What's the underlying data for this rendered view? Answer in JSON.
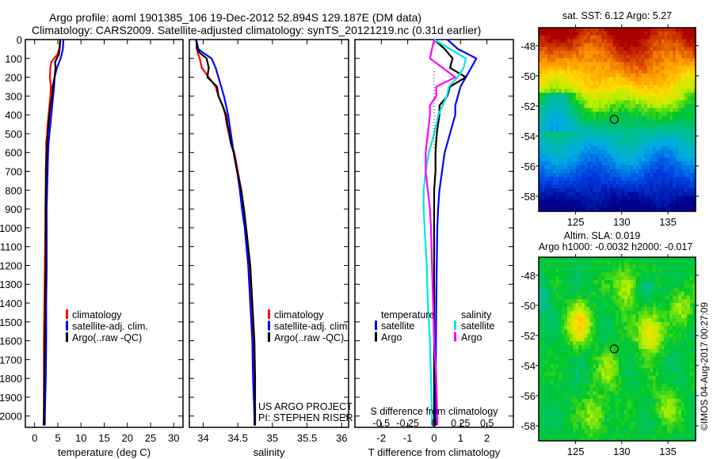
{
  "header": {
    "title_line1": "Argo profile: aoml 1901385_106 19-Dec-2012 52.894S 129.187E (DM data)",
    "title_line2": "Climatology: CARS2009. Satellite-adjusted climatology: synTS_20121219.nc (0.31d earlier)"
  },
  "colors": {
    "climatology": "#ff0000",
    "satellite": "#0000ff",
    "argo": "#000000",
    "salinity_satellite": "#00e5e5",
    "salinity_argo": "#ff00ff"
  },
  "chart_data": [
    {
      "type": "line",
      "id": "temperature",
      "xlabel": "temperature (deg C)",
      "ylabel": "",
      "xlim": [
        -2,
        32
      ],
      "ylim": [
        2060,
        0
      ],
      "xticks": [
        "0",
        "5",
        "10",
        "15",
        "20",
        "25",
        "30"
      ],
      "xtick_values": [
        0,
        5,
        10,
        15,
        20,
        25,
        30
      ],
      "yticks": [
        "0",
        "100",
        "200",
        "300",
        "400",
        "500",
        "600",
        "700",
        "800",
        "900",
        "1000",
        "1100",
        "1200",
        "1300",
        "1400",
        "1500",
        "1600",
        "1700",
        "1800",
        "1900",
        "2000"
      ],
      "ytick_values": [
        0,
        100,
        200,
        300,
        400,
        500,
        600,
        700,
        800,
        900,
        1000,
        1100,
        1200,
        1300,
        1400,
        1500,
        1600,
        1700,
        1800,
        1900,
        2000
      ],
      "legend": [
        "climatology",
        "satellite-adj. clim.",
        "Argo(..raw -QC)"
      ],
      "depth": [
        0,
        50,
        80,
        100,
        120,
        150,
        200,
        250,
        300,
        350,
        400,
        450,
        500,
        550,
        600,
        700,
        800,
        900,
        1000,
        1200,
        1400,
        1600,
        1800,
        2000,
        2050
      ],
      "series": [
        {
          "name": "climatology",
          "color": "#ff0000",
          "values": [
            5.6,
            5.3,
            4.9,
            4.2,
            3.6,
            3.4,
            3.3,
            3.5,
            3.4,
            3.2,
            3.0,
            2.8,
            2.7,
            2.5,
            2.5,
            2.4,
            2.4,
            2.3,
            2.3,
            2.2,
            2.1,
            2.0,
            2.0,
            2.0,
            1.9
          ]
        },
        {
          "name": "satellite-adj. clim.",
          "color": "#0000ff",
          "values": [
            6.2,
            6.1,
            5.8,
            5.6,
            5.3,
            4.8,
            4.3,
            4.2,
            4.0,
            3.8,
            3.6,
            3.4,
            3.2,
            3.0,
            2.9,
            2.8,
            2.7,
            2.6,
            2.6,
            2.6,
            2.5,
            2.5,
            2.4,
            2.2,
            2.2
          ]
        },
        {
          "name": "Argo(..raw -QC)",
          "color": "#000000",
          "values": [
            5.5,
            5.4,
            5.2,
            4.8,
            4.4,
            4.5,
            4.3,
            3.9,
            3.8,
            3.4,
            3.2,
            3.0,
            2.8,
            2.7,
            2.6,
            2.5,
            2.4,
            2.4,
            2.4,
            2.4,
            2.3,
            2.2,
            2.1,
            2.0,
            2.0
          ]
        }
      ]
    },
    {
      "type": "line",
      "id": "salinity",
      "xlabel": "salinity",
      "xlim": [
        33.8,
        36.1
      ],
      "ylim": [
        2060,
        0
      ],
      "xticks": [
        "34",
        "34.5",
        "35",
        "35.5",
        "36"
      ],
      "xtick_values": [
        34,
        34.5,
        35,
        35.5,
        36
      ],
      "legend": [
        "climatology",
        "satellite-adj. clim.",
        "Argo(..raw -QC)"
      ],
      "annotation": [
        "US ARGO PROJECT",
        "PI: STEPHEN RISER"
      ],
      "depth": [
        0,
        50,
        70,
        100,
        150,
        200,
        250,
        300,
        350,
        400,
        450,
        500,
        550,
        600,
        700,
        800,
        900,
        1000,
        1200,
        1400,
        1600,
        1800,
        2000,
        2050
      ],
      "series": [
        {
          "name": "climatology",
          "color": "#ff0000",
          "values": [
            33.9,
            33.91,
            33.92,
            33.95,
            33.98,
            34.08,
            34.18,
            34.22,
            34.28,
            34.32,
            34.34,
            34.37,
            34.4,
            34.45,
            34.5,
            34.55,
            34.58,
            34.61,
            34.66,
            34.69,
            34.72,
            34.74,
            34.75,
            34.75
          ]
        },
        {
          "name": "satellite-adj. clim.",
          "color": "#0000ff",
          "values": [
            33.9,
            33.93,
            34.0,
            34.12,
            34.18,
            34.22,
            34.26,
            34.3,
            34.33,
            34.36,
            34.38,
            34.4,
            34.42,
            34.44,
            34.49,
            34.53,
            34.56,
            34.6,
            34.65,
            34.68,
            34.71,
            34.72,
            34.74,
            34.74
          ]
        },
        {
          "name": "Argo(..raw -QC)",
          "color": "#000000",
          "values": [
            33.9,
            33.91,
            33.95,
            34.05,
            34.08,
            34.06,
            34.2,
            34.22,
            34.28,
            34.33,
            34.35,
            34.38,
            34.4,
            34.44,
            34.49,
            34.55,
            34.59,
            34.62,
            34.68,
            34.71,
            34.74,
            34.75,
            34.75,
            34.75
          ]
        }
      ]
    },
    {
      "type": "line",
      "id": "difference",
      "xlabel": "T difference from climatology",
      "xlabel_top": "S difference from climatology",
      "xlim": [
        -3,
        3
      ],
      "ylim": [
        2060,
        0
      ],
      "xticks": [
        "-2",
        "-1",
        "0",
        "1",
        "2"
      ],
      "xtick_values": [
        -2,
        -1,
        0,
        1,
        2
      ],
      "s_xticks": [
        "-0.5",
        "-0.25",
        "0",
        "0.25",
        "0.5"
      ],
      "s_xtick_values": [
        -0.5,
        -0.25,
        0,
        0.25,
        0.5
      ],
      "legend_temperature": {
        "title": "temperature",
        "items": [
          "satellite",
          "Argo"
        ]
      },
      "legend_salinity": {
        "title": "salinity",
        "items": [
          "satellite",
          "Argo"
        ]
      },
      "depth": [
        0,
        50,
        100,
        150,
        200,
        250,
        300,
        350,
        400,
        450,
        500,
        600,
        700,
        800,
        900,
        1000,
        1200,
        1400,
        1600,
        1800,
        2000,
        2050
      ],
      "series": [
        {
          "name": "T satellite",
          "color": "#0000ff",
          "values": [
            0.5,
            0.9,
            1.6,
            1.4,
            1.2,
            1.0,
            0.9,
            0.8,
            0.8,
            0.7,
            0.6,
            0.4,
            0.3,
            0.2,
            0.15,
            0.12,
            0.1,
            0.08,
            0.07,
            0.06,
            0.05,
            0.05
          ]
        },
        {
          "name": "T Argo",
          "color": "#000000",
          "values": [
            0.0,
            0.4,
            0.7,
            0.6,
            1.2,
            0.6,
            0.5,
            0.2,
            0.2,
            0.15,
            0.1,
            0.05,
            0.05,
            0.0,
            0.0,
            0.0,
            0.0,
            0.0,
            0.0,
            0.0,
            0.0,
            0.0
          ]
        },
        {
          "name": "S satellite",
          "color": "#00e5e5",
          "values": [
            0.0,
            0.15,
            0.3,
            0.28,
            0.22,
            0.14,
            0.12,
            0.08,
            0.04,
            0.02,
            0.0,
            -0.05,
            -0.08,
            -0.1,
            -0.1,
            -0.09,
            -0.07,
            -0.06,
            -0.04,
            -0.03,
            -0.02,
            -0.02
          ]
        },
        {
          "name": "S Argo",
          "color": "#ff00ff",
          "values": [
            0.0,
            -0.02,
            -0.04,
            0.08,
            0.2,
            0.02,
            0.02,
            -0.04,
            -0.04,
            -0.05,
            -0.06,
            -0.08,
            -0.08,
            -0.06,
            -0.04,
            -0.03,
            -0.02,
            -0.01,
            0.0,
            0.02,
            0.03,
            0.03
          ]
        }
      ]
    },
    {
      "type": "heatmap",
      "id": "sst-map",
      "title": "sat. SST: 6.12 Argo: 5.27",
      "xlim": [
        121,
        138
      ],
      "ylim": [
        -59,
        -46.8
      ],
      "xticks": [
        "125",
        "130",
        "135"
      ],
      "xtick_values": [
        125,
        130,
        135
      ],
      "yticks": [
        "-48",
        "-50",
        "-52",
        "-54",
        "-56",
        "-58"
      ],
      "ytick_values": [
        -48,
        -50,
        -52,
        -54,
        -56,
        -58
      ],
      "marker": {
        "lon": 129.187,
        "lat": -52.894
      }
    },
    {
      "type": "heatmap",
      "id": "sla-map",
      "title_line1": "Altim. SLA: 0.019",
      "title_line2": "Argo h1000: -0.0032 h2000: -0.017",
      "xlim": [
        121,
        138
      ],
      "ylim": [
        -59,
        -46.8
      ],
      "xticks": [
        "125",
        "130",
        "135"
      ],
      "xtick_values": [
        125,
        130,
        135
      ],
      "yticks": [
        "-48",
        "-50",
        "-52",
        "-54",
        "-56",
        "-58"
      ],
      "ytick_values": [
        -48,
        -50,
        -52,
        -54,
        -56,
        -58
      ],
      "marker": {
        "lon": 129.187,
        "lat": -52.894
      }
    }
  ],
  "footer": {
    "credit": "©IMOS 04-Aug-2017 00:27:09"
  }
}
